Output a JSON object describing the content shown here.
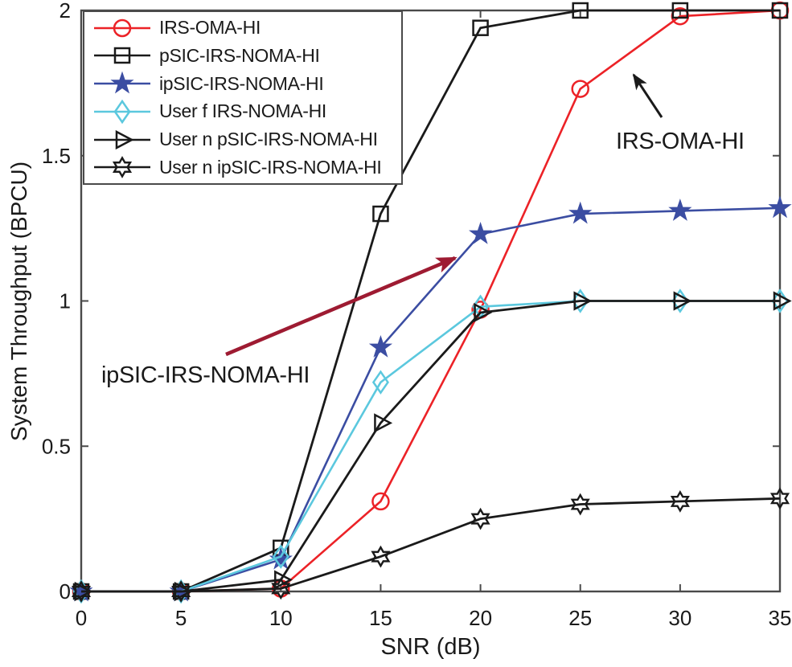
{
  "figure": {
    "background": "#FFFFFF",
    "axis_color": "#4A4A4A",
    "text_color": "#1A1A1A"
  },
  "chart_data": {
    "type": "line",
    "title": "",
    "xlabel": "SNR (dB)",
    "ylabel": "System Throughput (BPCU)",
    "xlim": [
      0,
      35
    ],
    "ylim": [
      0,
      2
    ],
    "xticks": [
      0,
      5,
      10,
      15,
      20,
      25,
      30,
      35
    ],
    "xtick_labels": [
      "0",
      "5",
      "10",
      "15",
      "20",
      "25",
      "30",
      "35"
    ],
    "yticks": [
      0,
      0.5,
      1,
      1.5,
      2
    ],
    "ytick_labels": [
      "0",
      "0.5",
      "1",
      "1.5",
      "2"
    ],
    "grid": false,
    "legend_position": "top-left",
    "x": [
      0,
      5,
      10,
      15,
      20,
      25,
      30,
      35
    ],
    "series": [
      {
        "name": "IRS-OMA-HI",
        "color": "#EC2227",
        "marker": "circle",
        "values": [
          0,
          0,
          0.01,
          0.31,
          0.97,
          1.73,
          1.98,
          2.0
        ]
      },
      {
        "name": "pSIC-IRS-NOMA-HI",
        "color": "#1A1A1A",
        "marker": "square",
        "values": [
          0,
          0,
          0.15,
          1.3,
          1.94,
          2.0,
          2.0,
          2.0
        ]
      },
      {
        "name": "ipSIC-IRS-NOMA-HI",
        "color": "#3B4DA2",
        "marker": "star5",
        "values": [
          0,
          0,
          0.11,
          0.84,
          1.23,
          1.3,
          1.31,
          1.32
        ]
      },
      {
        "name": "User f IRS-NOMA-HI",
        "color": "#5BC8DE",
        "marker": "diamond",
        "values": [
          0,
          0,
          0.12,
          0.72,
          0.98,
          1.0,
          1.0,
          1.0
        ]
      },
      {
        "name": "User n pSIC-IRS-NOMA-HI",
        "color": "#1A1A1A",
        "marker": "triangle-right",
        "values": [
          0,
          0,
          0.04,
          0.58,
          0.96,
          1.0,
          1.0,
          1.0
        ]
      },
      {
        "name": "User n ipSIC-IRS-NOMA-HI",
        "color": "#1A1A1A",
        "marker": "hexagram",
        "values": [
          0,
          0,
          0.01,
          0.12,
          0.25,
          0.3,
          0.31,
          0.32
        ]
      }
    ],
    "annotations": [
      {
        "text": "IRS-OMA-HI",
        "arrow_color": "#1A1A1A",
        "points_to": "IRS-OMA-HI curve"
      },
      {
        "text": "ipSIC-IRS-NOMA-HI",
        "arrow_color": "#9E1B32",
        "points_to": "ipSIC-IRS-NOMA-HI curve"
      }
    ]
  }
}
